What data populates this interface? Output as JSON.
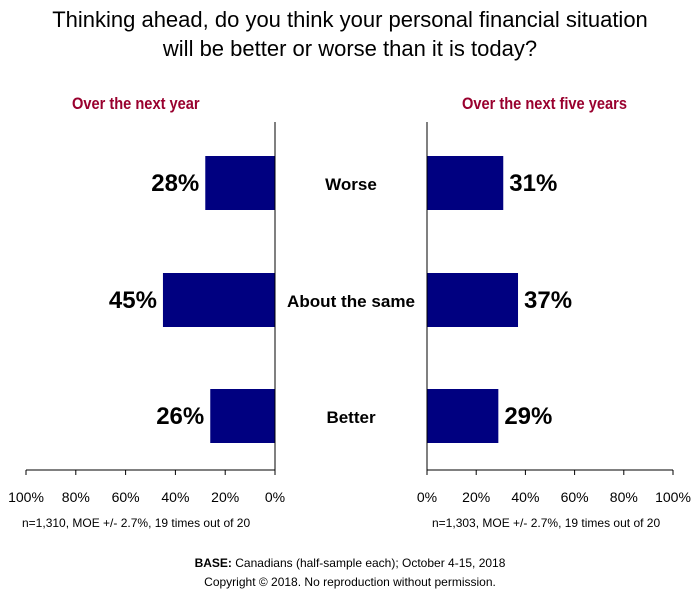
{
  "title_line1": "Thinking ahead, do you think your personal financial situation",
  "title_line2": "will be better or worse than it is today?",
  "colors": {
    "bar": "#000080",
    "panel_title": "#99002e"
  },
  "chart_data": [
    {
      "type": "bar",
      "orientation": "horizontal",
      "direction": "right-to-left",
      "title": "Over the next year",
      "categories": [
        "Worse",
        "About the same",
        "Better"
      ],
      "values": [
        28,
        45,
        26
      ],
      "value_labels": [
        "28%",
        "45%",
        "26%"
      ],
      "xlim": [
        0,
        100
      ],
      "tick_labels": [
        "100%",
        "80%",
        "60%",
        "40%",
        "20%",
        "0%"
      ],
      "note": "n=1,310, MOE +/- 2.7%, 19 times out of 20"
    },
    {
      "type": "bar",
      "orientation": "horizontal",
      "direction": "left-to-right",
      "title": "Over the next five years",
      "categories": [
        "Worse",
        "About the same",
        "Better"
      ],
      "values": [
        31,
        37,
        29
      ],
      "value_labels": [
        "31%",
        "37%",
        "29%"
      ],
      "xlim": [
        0,
        100
      ],
      "tick_labels": [
        "0%",
        "20%",
        "40%",
        "60%",
        "80%",
        "100%"
      ],
      "note": "n=1,303, MOE +/- 2.7%, 19 times out of 20"
    }
  ],
  "footer": {
    "base_label": "BASE:",
    "base_text": " Canadians (half-sample each); October 4-15, 2018",
    "copyright": "Copyright © 2018.  No reproduction without permission."
  }
}
